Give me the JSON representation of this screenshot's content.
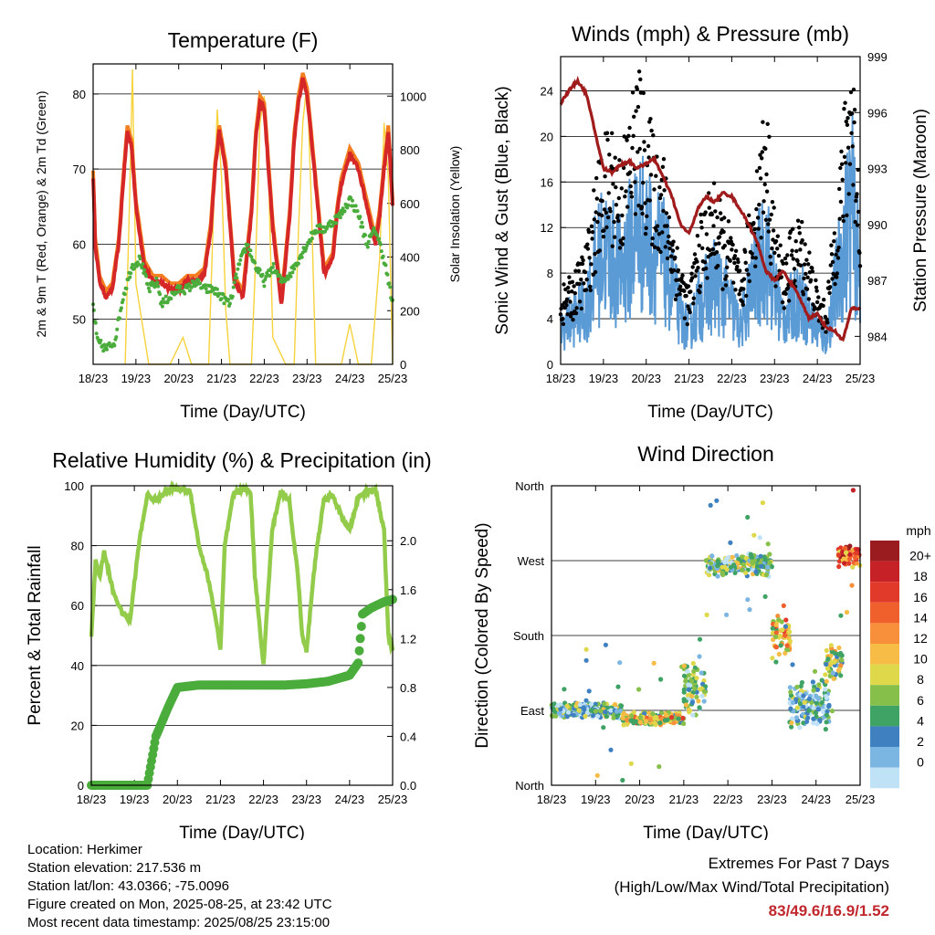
{
  "chart_data": [
    {
      "type": "line",
      "title": "Temperature (F)",
      "xlabel": "Time (Day/UTC)",
      "ylabel": "2m & 9m T (Red, Orange) & 2m Td (Green)",
      "ylabel_right": "Solar Insolation (Yellow)",
      "x_ticks": [
        "18/23",
        "19/23",
        "20/23",
        "21/23",
        "22/23",
        "23/23",
        "24/23",
        "25/23"
      ],
      "ylim": [
        44,
        84
      ],
      "yticks": [
        50,
        60,
        70,
        80
      ],
      "ylim_right": [
        0,
        1120
      ],
      "yticks_right": [
        0,
        200,
        400,
        600,
        800,
        1000
      ],
      "colors": {
        "t2m": "#d62728",
        "t9m": "#f47f20",
        "td": "#4aac3b",
        "solar": "#f6d23c"
      },
      "series": [
        {
          "name": "2m T",
          "x": [
            0,
            0.05,
            0.15,
            0.3,
            0.45,
            0.6,
            0.7,
            0.8,
            0.9,
            1.0,
            1.2,
            1.4,
            1.6,
            1.8,
            2.0,
            2.2,
            2.4,
            2.6,
            2.75,
            2.85,
            2.95,
            3.1,
            3.3,
            3.5,
            3.7,
            3.8,
            3.9,
            4.0,
            4.2,
            4.4,
            4.6,
            4.7,
            4.8,
            4.9,
            5.0,
            5.2,
            5.4,
            5.6,
            5.7,
            5.8,
            6.0,
            6.2,
            6.4,
            6.6,
            6.7,
            6.8,
            6.9,
            7.0
          ],
          "values": [
            69,
            60,
            55,
            53,
            54,
            60,
            68,
            75,
            73,
            65,
            57,
            55,
            55,
            54,
            54,
            55,
            55,
            56,
            62,
            70,
            75,
            70,
            55,
            53,
            64,
            74,
            79,
            78,
            62,
            52,
            64,
            74,
            79,
            82,
            80,
            68,
            56,
            58,
            64,
            68,
            72,
            70,
            65,
            60,
            64,
            70,
            75,
            65
          ]
        },
        {
          "name": "Td",
          "x": [
            0,
            0.1,
            0.3,
            0.5,
            0.7,
            0.9,
            1.1,
            1.3,
            1.5,
            1.6,
            1.8,
            2.0,
            2.2,
            2.4,
            2.6,
            2.8,
            3.0,
            3.2,
            3.4,
            3.6,
            3.8,
            4.0,
            4.2,
            4.4,
            4.6,
            4.8,
            5.0,
            5.2,
            5.4,
            5.6,
            5.8,
            6.0,
            6.2,
            6.4,
            6.6,
            6.8,
            7.0
          ],
          "values": [
            52,
            47,
            46,
            47,
            53,
            57,
            58,
            54,
            55,
            52,
            53,
            54,
            54,
            55,
            54,
            54,
            53,
            52,
            57,
            60,
            57,
            55,
            57,
            55,
            56,
            58,
            60,
            62,
            62,
            63,
            64,
            66,
            64,
            60,
            62,
            58,
            52
          ]
        },
        {
          "name": "Solar",
          "x": [
            0.75,
            0.85,
            0.92,
            1.0,
            1.3,
            1.8,
            2.1,
            2.3,
            2.5,
            2.7,
            2.8,
            2.9,
            3.0,
            3.1,
            3.2,
            3.5,
            3.7,
            3.8,
            3.9,
            4.0,
            4.1,
            4.2,
            4.5,
            4.7,
            4.8,
            4.9,
            5.0,
            5.1,
            5.2,
            5.5,
            5.8,
            6.0,
            6.2,
            6.5,
            6.7,
            6.8,
            6.9,
            7.0
          ],
          "values": [
            0,
            600,
            1100,
            300,
            0,
            0,
            100,
            0,
            0,
            0,
            500,
            950,
            700,
            200,
            0,
            0,
            0,
            400,
            900,
            1000,
            700,
            100,
            0,
            0,
            500,
            900,
            1050,
            600,
            0,
            0,
            0,
            150,
            0,
            0,
            400,
            900,
            700,
            0
          ]
        }
      ]
    },
    {
      "type": "line",
      "title": "Winds (mph) & Pressure (mb)",
      "xlabel": "Time (Day/UTC)",
      "ylabel": "Sonic Wind & Gust (Blue, Black)",
      "ylabel_right": "Station Pressure (Maroon)",
      "x_ticks": [
        "18/23",
        "19/23",
        "20/23",
        "21/23",
        "22/23",
        "23/23",
        "24/23",
        "25/23"
      ],
      "ylim": [
        0,
        27
      ],
      "yticks": [
        0,
        4,
        8,
        12,
        16,
        20,
        24
      ],
      "ylim_right": [
        982.5,
        999
      ],
      "yticks_right": [
        984,
        987,
        990,
        993,
        996,
        999
      ],
      "colors": {
        "wind": "#5b9bd5",
        "gust": "#000000",
        "pressure": "#a01b1b"
      },
      "series": [
        {
          "name": "Wind",
          "x": [
            0,
            0.3,
            0.6,
            0.8,
            1.0,
            1.2,
            1.4,
            1.6,
            1.8,
            2.0,
            2.2,
            2.4,
            2.6,
            2.8,
            3.0,
            3.2,
            3.4,
            3.6,
            3.8,
            4.0,
            4.2,
            4.4,
            4.6,
            4.8,
            5.0,
            5.2,
            5.4,
            5.6,
            5.8,
            6.0,
            6.2,
            6.4,
            6.6,
            6.8,
            7.0
          ],
          "values": [
            3,
            4,
            5,
            8,
            10,
            9,
            8,
            10,
            12,
            11,
            10,
            9,
            7,
            4,
            3,
            5,
            6,
            7,
            6,
            5,
            3,
            6,
            8,
            10,
            6,
            4,
            5,
            6,
            4,
            3,
            2,
            6,
            10,
            14,
            7
          ]
        },
        {
          "name": "Gust",
          "x": [
            0,
            0.3,
            0.6,
            0.8,
            1.0,
            1.2,
            1.4,
            1.6,
            1.8,
            2.0,
            2.2,
            2.4,
            2.6,
            2.8,
            3.0,
            3.2,
            3.4,
            3.6,
            3.8,
            4.0,
            4.2,
            4.4,
            4.6,
            4.8,
            5.0,
            5.2,
            5.4,
            5.6,
            5.8,
            6.0,
            6.2,
            6.4,
            6.6,
            6.8,
            7.0
          ],
          "values": [
            5,
            6,
            8,
            12,
            15,
            16,
            14,
            17,
            20,
            17,
            15,
            14,
            10,
            7,
            5,
            9,
            11,
            12,
            10,
            9,
            6,
            10,
            14,
            18,
            10,
            7,
            9,
            10,
            8,
            5,
            4,
            10,
            16,
            22,
            12
          ]
        },
        {
          "name": "Pressure",
          "x": [
            0,
            0.2,
            0.4,
            0.6,
            0.8,
            1.0,
            1.2,
            1.4,
            1.6,
            1.8,
            2.0,
            2.2,
            2.4,
            2.6,
            2.8,
            3.0,
            3.2,
            3.4,
            3.6,
            3.8,
            4.0,
            4.2,
            4.4,
            4.6,
            4.8,
            5.0,
            5.2,
            5.4,
            5.6,
            5.8,
            6.0,
            6.2,
            6.4,
            6.6,
            6.8,
            7.0
          ],
          "values": [
            996.5,
            997.2,
            997.7,
            997.0,
            995.0,
            993.0,
            992.8,
            993.2,
            993.4,
            993.0,
            993.3,
            993.5,
            992.5,
            991.5,
            990.0,
            989.5,
            990.8,
            991.5,
            991.2,
            991.7,
            991.5,
            990.8,
            990.0,
            989.0,
            987.5,
            987.0,
            987.5,
            986.8,
            986.0,
            985.0,
            985.2,
            984.5,
            984.3,
            983.8,
            985.5,
            985.5
          ]
        }
      ]
    },
    {
      "type": "line",
      "title": "Relative Humidity (%) & Precipitation (in)",
      "xlabel": "Time (Day/UTC)",
      "ylabel": "Percent & Total Rainfall",
      "x_ticks": [
        "18/23",
        "19/23",
        "20/23",
        "21/23",
        "22/23",
        "23/23",
        "24/23",
        "25/23"
      ],
      "ylim": [
        0,
        100
      ],
      "yticks": [
        0,
        20,
        40,
        60,
        80,
        100
      ],
      "ylim_right": [
        0,
        2.45
      ],
      "yticks_right": [
        "0.0",
        "0.4",
        "0.8",
        "1.2",
        "1.6",
        "2.0"
      ],
      "colors": {
        "rh": "#92cc4a",
        "precip": "#4aac3b"
      },
      "series": [
        {
          "name": "RH",
          "x": [
            0,
            0.1,
            0.2,
            0.3,
            0.5,
            0.7,
            0.9,
            1.1,
            1.3,
            1.5,
            1.7,
            1.9,
            2.1,
            2.3,
            2.5,
            2.7,
            2.9,
            3.0,
            3.1,
            3.3,
            3.5,
            3.7,
            3.8,
            3.9,
            4.0,
            4.2,
            4.4,
            4.6,
            4.8,
            4.9,
            5.0,
            5.2,
            5.4,
            5.6,
            5.8,
            6.0,
            6.2,
            6.4,
            6.6,
            6.8,
            6.9,
            7.0
          ],
          "values": [
            50,
            75,
            70,
            78,
            65,
            58,
            55,
            80,
            97,
            95,
            98,
            99,
            99,
            98,
            80,
            70,
            55,
            45,
            80,
            97,
            99,
            98,
            70,
            55,
            40,
            85,
            98,
            95,
            70,
            50,
            45,
            75,
            95,
            97,
            90,
            85,
            96,
            98,
            99,
            85,
            50,
            45
          ]
        },
        {
          "name": "Precip",
          "x": [
            0,
            0.5,
            1.0,
            1.3,
            1.5,
            1.8,
            2.0,
            2.5,
            3.0,
            3.5,
            4.0,
            4.5,
            5.0,
            5.5,
            6.0,
            6.2,
            6.3,
            6.5,
            6.8,
            7.0
          ],
          "values": [
            0,
            0,
            0,
            0,
            0.4,
            0.65,
            0.8,
            0.82,
            0.82,
            0.82,
            0.82,
            0.82,
            0.83,
            0.85,
            0.9,
            1.0,
            1.4,
            1.45,
            1.5,
            1.52
          ]
        }
      ]
    },
    {
      "type": "scatter",
      "title": "Wind Direction",
      "xlabel": "Time (Day/UTC)",
      "ylabel": "Direction (Colored By Speed)",
      "x_ticks": [
        "18/23",
        "19/23",
        "20/23",
        "21/23",
        "22/23",
        "23/23",
        "24/23",
        "25/23"
      ],
      "y_ticks": [
        "North",
        "East",
        "South",
        "West",
        "North"
      ],
      "legend_title": "mph",
      "legend_labels": [
        "20+",
        "18",
        "16",
        "14",
        "12",
        "10",
        "8",
        "6",
        "4",
        "2",
        "0"
      ],
      "legend_colors": [
        "#9b1c1f",
        "#c62127",
        "#e23a2a",
        "#f0602c",
        "#f8903b",
        "#f6bc45",
        "#dfd84a",
        "#86c04a",
        "#3ea364",
        "#3f81c0",
        "#7bb6e3",
        "#bfe2f7"
      ],
      "clusters": [
        {
          "x": [
            0.0,
            1.6
          ],
          "dir": 90,
          "spread": 10,
          "speed": 5
        },
        {
          "x": [
            1.6,
            3.0
          ],
          "dir": 80,
          "spread": 8,
          "speed": 10
        },
        {
          "x": [
            3.0,
            3.5
          ],
          "dir": 120,
          "spread": 40,
          "speed": 6
        },
        {
          "x": [
            3.5,
            5.0
          ],
          "dir": 265,
          "spread": 15,
          "speed": 6
        },
        {
          "x": [
            5.0,
            5.4
          ],
          "dir": 180,
          "spread": 30,
          "speed": 12
        },
        {
          "x": [
            5.4,
            6.3
          ],
          "dir": 100,
          "spread": 30,
          "speed": 4
        },
        {
          "x": [
            6.2,
            6.6
          ],
          "dir": 145,
          "spread": 25,
          "speed": 8
        },
        {
          "x": [
            6.5,
            7.0
          ],
          "dir": 275,
          "spread": 15,
          "speed": 16
        }
      ]
    }
  ],
  "footer": {
    "location": "Location: Herkimer",
    "elevation": "Station elevation: 217.536 m",
    "latlon": "Station lat/lon: 43.0366; -75.0096",
    "created": "Figure created on Mon, 2025-08-25, at 23:42 UTC",
    "recent": "Most recent data timestamp: 2025/08/25 23:15:00",
    "extremes_title": "Extremes For Past 7 Days",
    "extremes_sub": "(High/Low/Max Wind/Total Precipitation)",
    "extremes_values": "83/49.6/16.9/1.52"
  }
}
